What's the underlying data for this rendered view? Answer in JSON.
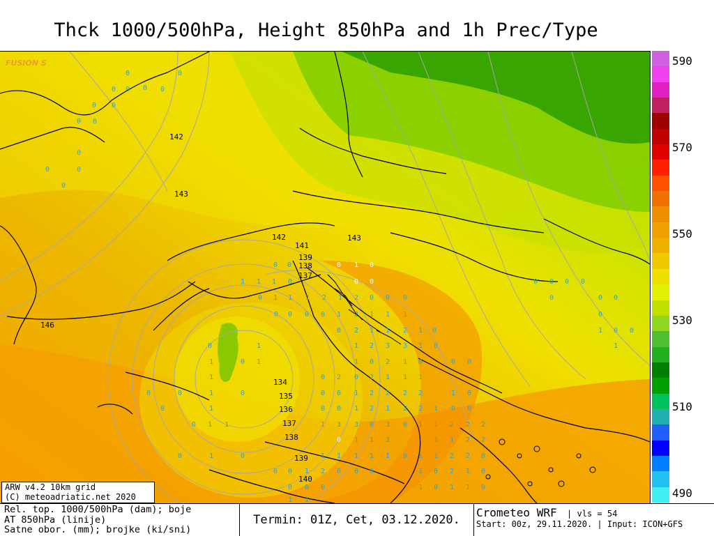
{
  "title": "Thck 1000/500hPa, Height 850hPa and 1h Prec/Type",
  "watermark": "FUSION S",
  "colors": {
    "orange_deep": "#f5a000",
    "orange": "#f0b400",
    "yellow_orange": "#e6c400",
    "yellow": "#f0e400",
    "yellow_green": "#d2e600",
    "light_green": "#a8d800",
    "green": "#5fb400",
    "dark_green": "#219600",
    "isoline": "#a8a8a8",
    "precip_label": "#2aa6e0"
  },
  "legend": {
    "ticks": [
      "590",
      "570",
      "550",
      "530",
      "510",
      "490"
    ],
    "stops": [
      "#40f0f0",
      "#20c0f0",
      "#0080ff",
      "#0000ff",
      "#2060ff",
      "#20b0b0",
      "#00c060",
      "#00a000",
      "#008000",
      "#20b020",
      "#50c030",
      "#90d820",
      "#c0e000",
      "#e0f000",
      "#f0e000",
      "#f0c800",
      "#f0b000",
      "#f0a000",
      "#f09000",
      "#f07000",
      "#ff5000",
      "#ff2000",
      "#e00000",
      "#c00000",
      "#a00000",
      "#c02060",
      "#e020c0",
      "#f040f0",
      "#d060e0"
    ]
  },
  "height_labels": [
    {
      "text": "142"
    },
    {
      "text": "143"
    },
    {
      "text": "142"
    },
    {
      "text": "141"
    },
    {
      "text": "143"
    },
    {
      "text": "139"
    },
    {
      "text": "138"
    },
    {
      "text": "137"
    },
    {
      "text": "146"
    },
    {
      "text": "134"
    },
    {
      "text": "135"
    },
    {
      "text": "136"
    },
    {
      "text": "137"
    },
    {
      "text": "138"
    },
    {
      "text": "139"
    },
    {
      "text": "140"
    }
  ],
  "credit": {
    "line1": "ARW v4.2 10km grid",
    "line2": "(C) meteoadriatic.net 2020"
  },
  "footer": {
    "left_line1": "Rel. top. 1000/500hPa (dam); boje",
    "left_line2": "AT 850hPa (linije)",
    "left_line3": "Satne obor. (mm); brojke (ki/sni)",
    "termin": "Termin: 01Z, Cet, 03.12.2020.",
    "model": "Crometeo WRF",
    "vls": "vls = 54",
    "start": "Start: 00z, 29.11.2020.",
    "input": "Input: ICON+GFS"
  }
}
